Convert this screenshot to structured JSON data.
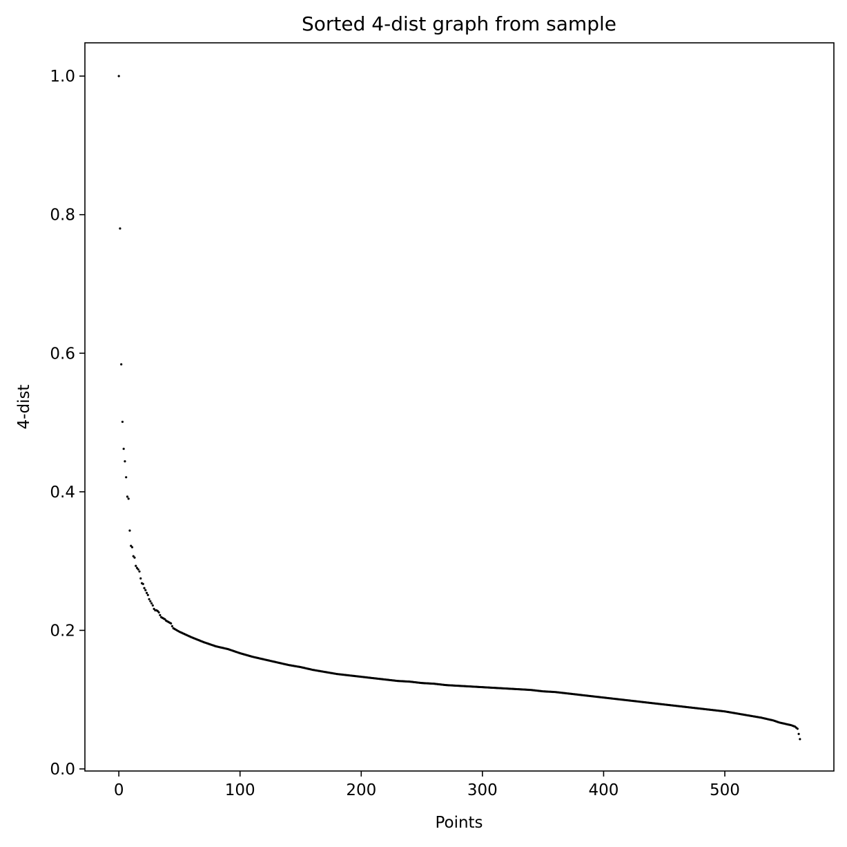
{
  "chart_data": {
    "type": "scatter",
    "title": "Sorted 4-dist graph from sample",
    "xlabel": "Points",
    "ylabel": "4-dist",
    "xlim": [
      -28,
      590
    ],
    "ylim": [
      -0.003,
      1.048
    ],
    "xticks": [
      0,
      100,
      200,
      300,
      400,
      500
    ],
    "xtick_labels": [
      "0",
      "100",
      "200",
      "300",
      "400",
      "500"
    ],
    "yticks": [
      0.0,
      0.2,
      0.4,
      0.6,
      0.8,
      1.0
    ],
    "ytick_labels": [
      "0.0",
      "0.2",
      "0.4",
      "0.6",
      "0.8",
      "1.0"
    ],
    "grid": false,
    "marker_color": "#000000",
    "series": [
      {
        "x": [
          0,
          1,
          2,
          3,
          4,
          5,
          6,
          7,
          8,
          9,
          10,
          11,
          12,
          13,
          14,
          15,
          16,
          17,
          18,
          19,
          20,
          21,
          22,
          23,
          24,
          25,
          26,
          27,
          28,
          29,
          30,
          31,
          32,
          33,
          34,
          35,
          36,
          37,
          38,
          39,
          40,
          41,
          42,
          43,
          44,
          45,
          46,
          47,
          48,
          49,
          50,
          60,
          70,
          80,
          90,
          100,
          110,
          120,
          130,
          140,
          150,
          160,
          170,
          180,
          190,
          200,
          210,
          220,
          230,
          240,
          250,
          260,
          270,
          280,
          290,
          300,
          310,
          320,
          330,
          340,
          350,
          360,
          370,
          380,
          390,
          400,
          410,
          420,
          430,
          440,
          450,
          460,
          470,
          480,
          490,
          500,
          510,
          520,
          530,
          540,
          545,
          550,
          555,
          558,
          560,
          562
        ],
        "y": [
          1.0,
          0.78,
          0.584,
          0.501,
          0.462,
          0.444,
          0.421,
          0.393,
          0.39,
          0.344,
          0.322,
          0.32,
          0.307,
          0.305,
          0.293,
          0.29,
          0.288,
          0.285,
          0.275,
          0.268,
          0.267,
          0.261,
          0.258,
          0.254,
          0.251,
          0.245,
          0.242,
          0.239,
          0.236,
          0.231,
          0.229,
          0.229,
          0.228,
          0.226,
          0.222,
          0.219,
          0.218,
          0.217,
          0.216,
          0.214,
          0.213,
          0.212,
          0.211,
          0.21,
          0.206,
          0.203,
          0.202,
          0.201,
          0.2,
          0.199,
          0.198,
          0.19,
          0.183,
          0.177,
          0.173,
          0.167,
          0.162,
          0.158,
          0.154,
          0.15,
          0.147,
          0.143,
          0.14,
          0.137,
          0.135,
          0.133,
          0.131,
          0.129,
          0.127,
          0.126,
          0.124,
          0.123,
          0.121,
          0.12,
          0.119,
          0.118,
          0.117,
          0.116,
          0.115,
          0.114,
          0.112,
          0.111,
          0.109,
          0.107,
          0.105,
          0.103,
          0.101,
          0.099,
          0.097,
          0.095,
          0.093,
          0.091,
          0.089,
          0.087,
          0.085,
          0.083,
          0.08,
          0.077,
          0.074,
          0.07,
          0.067,
          0.065,
          0.063,
          0.061,
          0.058,
          0.043
        ]
      }
    ]
  }
}
